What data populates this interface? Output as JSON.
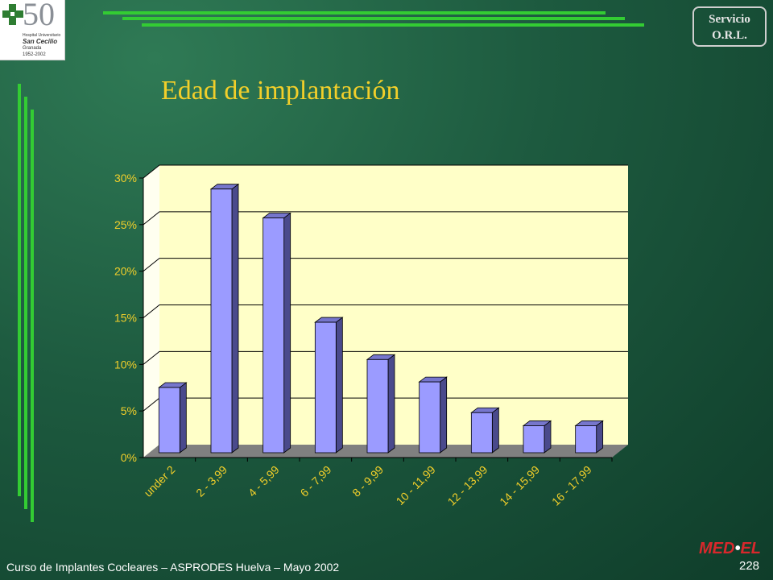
{
  "logo": {
    "number": "50",
    "line1": "Hospital Universitario",
    "line2": "San Cecilio",
    "line3": "Granada",
    "line4": "1952-2002"
  },
  "badge": {
    "line1": "Servicio",
    "line2": "O.R.L."
  },
  "slide": {
    "title": "Edad de implantación"
  },
  "footer": {
    "text": "Curso de Implantes Cocleares – ASPRODES Huelva – Mayo 2002",
    "page": "228"
  },
  "brand": {
    "left": "MED",
    "right": "EL"
  },
  "colors": {
    "background": "#1d5a3f",
    "title": "#f2cf2a",
    "bar": "#9b9bff",
    "plot": "#ffffcc",
    "accent_lines": "#33cc33"
  },
  "chart_data": {
    "type": "bar",
    "title": "",
    "xlabel": "",
    "ylabel": "",
    "categories": [
      "under 2",
      "2 - 3,99",
      "4 - 5,99",
      "6 - 7,99",
      "8 - 9,99",
      "10 - 11,99",
      "12 - 13,99",
      "14 - 15,99",
      "16 - 17,99"
    ],
    "values": [
      7,
      28.3,
      25.2,
      14,
      10,
      7.6,
      4.3,
      2.9,
      2.9
    ],
    "value_unit": "%",
    "ylim": [
      0,
      30
    ],
    "yticks": [
      "0%",
      "5%",
      "10%",
      "15%",
      "20%",
      "25%",
      "30%"
    ],
    "grid": true,
    "legend": "none",
    "style": "3d"
  }
}
